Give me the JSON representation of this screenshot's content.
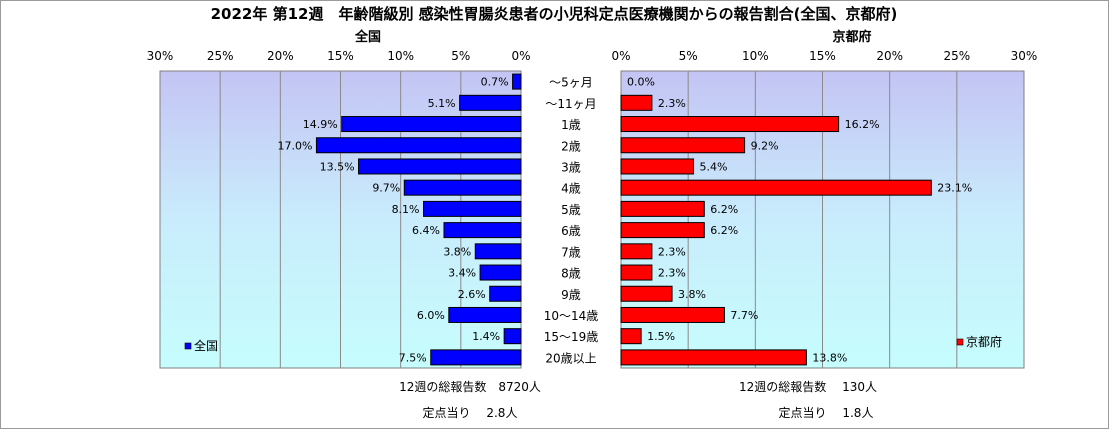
{
  "chart_data": {
    "type": "bar",
    "title": "2022年 第12週　年齢階級別 感染性胃腸炎患者の小児科定点医療機関からの報告割合(全国、京都府)",
    "categories": [
      "～5ヶ月",
      "～11ヶ月",
      "1歳",
      "2歳",
      "3歳",
      "4歳",
      "5歳",
      "6歳",
      "7歳",
      "8歳",
      "9歳",
      "10～14歳",
      "15～19歳",
      "20歳以上"
    ],
    "left_panel": {
      "title": "全国",
      "legend": "全国",
      "color": "#0000ff",
      "xlim": [
        0,
        30
      ],
      "ticks": [
        "30%",
        "25%",
        "20%",
        "15%",
        "10%",
        "5%",
        "0%"
      ],
      "values": [
        0.7,
        5.1,
        14.9,
        17.0,
        13.5,
        9.7,
        8.1,
        6.4,
        3.8,
        3.4,
        2.6,
        6.0,
        1.4,
        7.5
      ],
      "value_labels": [
        "0.7%",
        "5.1%",
        "14.9%",
        "17.0%",
        "13.5%",
        "9.7%",
        "8.1%",
        "6.4%",
        "3.8%",
        "3.4%",
        "2.6%",
        "6.0%",
        "1.4%",
        "7.5%"
      ],
      "summary_total": "12週の総報告数　8720人",
      "summary_per_site": "定点当り　 2.8人"
    },
    "right_panel": {
      "title": "京都府",
      "legend": "京都府",
      "color": "#ff0000",
      "xlim": [
        0,
        30
      ],
      "ticks": [
        "0%",
        "5%",
        "10%",
        "15%",
        "20%",
        "25%",
        "30%"
      ],
      "values": [
        0.0,
        2.3,
        16.2,
        9.2,
        5.4,
        23.1,
        6.2,
        6.2,
        2.3,
        2.3,
        3.8,
        7.7,
        1.5,
        13.8
      ],
      "value_labels": [
        "0.0%",
        "2.3%",
        "16.2%",
        "9.2%",
        "5.4%",
        "23.1%",
        "6.2%",
        "6.2%",
        "2.3%",
        "2.3%",
        "3.8%",
        "7.7%",
        "1.5%",
        "13.8%"
      ],
      "summary_total": "12週の総報告数　 130人",
      "summary_per_site": "定点当り　 1.8人"
    },
    "grid": true,
    "legend_placement": "bottom-inside"
  }
}
